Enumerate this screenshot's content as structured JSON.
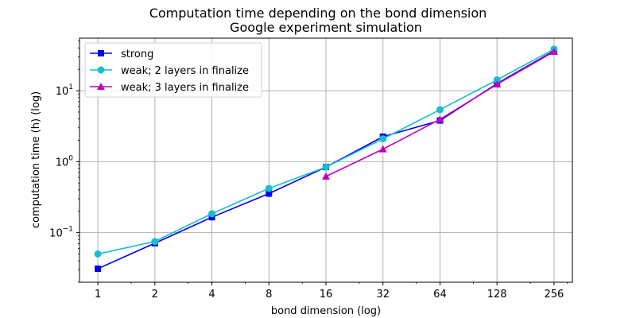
{
  "chart_data": {
    "type": "line",
    "title": "Computation time depending on the bond dimension",
    "subtitle": "Google experiment simulation",
    "xlabel": "bond dimension (log)",
    "ylabel": "computation time (h) (log)",
    "x_scale": "log2",
    "y_scale": "log10",
    "x": [
      1,
      2,
      4,
      8,
      16,
      32,
      64,
      128,
      256
    ],
    "xlim": [
      0.8,
      320
    ],
    "ylim": [
      0.02,
      55
    ],
    "x_tick_labels": [
      "1",
      "2",
      "4",
      "8",
      "16",
      "32",
      "64",
      "128",
      "256"
    ],
    "y_ticks": [
      {
        "value": 0.1,
        "base": "10",
        "exp": "−1"
      },
      {
        "value": 1,
        "base": "10",
        "exp": "0"
      },
      {
        "value": 10,
        "base": "10",
        "exp": "1"
      }
    ],
    "grid": true,
    "legend_position": "top-left",
    "series": [
      {
        "name": "strong",
        "color": "#0000ee",
        "marker": "square",
        "values": [
          0.031,
          0.071,
          0.165,
          0.355,
          0.84,
          2.25,
          3.8,
          12.6,
          36.5
        ]
      },
      {
        "name": "weak; 2 layers in finalize",
        "color": "#17becf",
        "marker": "circle",
        "values": [
          0.05,
          0.075,
          0.185,
          0.42,
          0.84,
          2.1,
          5.4,
          14.2,
          38.5
        ]
      },
      {
        "name": "weak; 3 layers in finalize",
        "color": "#c000c0",
        "marker": "triangle",
        "values": [
          null,
          null,
          null,
          null,
          0.62,
          1.5,
          3.95,
          12.3,
          35.5
        ]
      }
    ]
  }
}
